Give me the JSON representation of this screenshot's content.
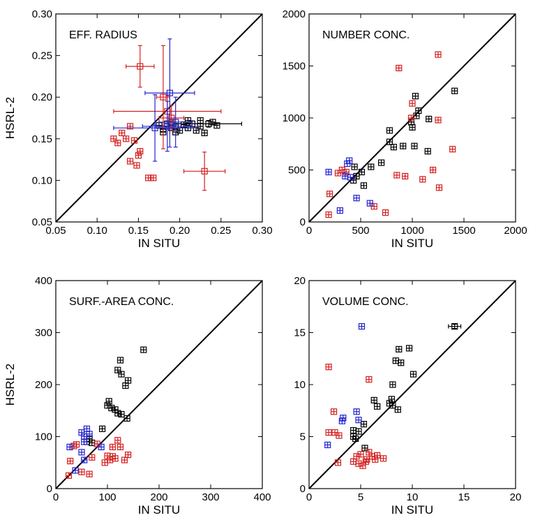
{
  "chart_data": [
    {
      "type": "scatter",
      "title": "EFF. RADIUS",
      "xlabel": "IN SITU",
      "ylabel": "HSRL-2",
      "xlim": [
        0.05,
        0.3
      ],
      "ylim": [
        0.05,
        0.3
      ],
      "xticks": [
        "0.05",
        "0.10",
        "0.15",
        "0.20",
        "0.25",
        "0.30"
      ],
      "yticks": [
        "0.05",
        "0.10",
        "0.15",
        "0.20",
        "0.25",
        "0.30"
      ],
      "one_to_one_line": true,
      "series": [
        {
          "color": "#000000",
          "points": [
            {
              "x": 0.235,
              "y": 0.168,
              "xerr": 0.04,
              "yerr": 0.004
            },
            {
              "x": 0.24,
              "y": 0.17
            },
            {
              "x": 0.245,
              "y": 0.166
            },
            {
              "x": 0.23,
              "y": 0.157
            },
            {
              "x": 0.225,
              "y": 0.165
            },
            {
              "x": 0.22,
              "y": 0.16
            },
            {
              "x": 0.215,
              "y": 0.168
            },
            {
              "x": 0.21,
              "y": 0.163
            },
            {
              "x": 0.205,
              "y": 0.167
            },
            {
              "x": 0.2,
              "y": 0.16
            },
            {
              "x": 0.195,
              "y": 0.165
            },
            {
              "x": 0.19,
              "y": 0.163
            },
            {
              "x": 0.185,
              "y": 0.168
            },
            {
              "x": 0.18,
              "y": 0.162
            },
            {
              "x": 0.175,
              "y": 0.166
            },
            {
              "x": 0.19,
              "y": 0.17
            },
            {
              "x": 0.21,
              "y": 0.172
            },
            {
              "x": 0.225,
              "y": 0.172
            },
            {
              "x": 0.18,
              "y": 0.158
            },
            {
              "x": 0.195,
              "y": 0.158
            }
          ]
        },
        {
          "color": "#d42020",
          "points": [
            {
              "x": 0.152,
              "y": 0.237,
              "xerr": 0.017,
              "yerr": 0.025
            },
            {
              "x": 0.18,
              "y": 0.2,
              "xerr": 0.008,
              "yerr": 0.062
            },
            {
              "x": 0.23,
              "y": 0.111,
              "xerr": 0.025,
              "yerr": 0.023
            },
            {
              "x": 0.185,
              "y": 0.183,
              "xerr": 0.065,
              "yerr": 0.02
            },
            {
              "x": 0.19,
              "y": 0.175,
              "xerr": 0.015,
              "yerr": 0.015
            },
            {
              "x": 0.14,
              "y": 0.165
            },
            {
              "x": 0.13,
              "y": 0.157
            },
            {
              "x": 0.135,
              "y": 0.15
            },
            {
              "x": 0.12,
              "y": 0.15
            },
            {
              "x": 0.125,
              "y": 0.145
            },
            {
              "x": 0.145,
              "y": 0.148
            },
            {
              "x": 0.152,
              "y": 0.135
            },
            {
              "x": 0.15,
              "y": 0.13
            },
            {
              "x": 0.14,
              "y": 0.123
            },
            {
              "x": 0.148,
              "y": 0.118
            },
            {
              "x": 0.162,
              "y": 0.103
            },
            {
              "x": 0.168,
              "y": 0.103
            }
          ]
        },
        {
          "color": "#2424d0",
          "points": [
            {
              "x": 0.188,
              "y": 0.205,
              "xerr": 0.03,
              "yerr": 0.065
            },
            {
              "x": 0.17,
              "y": 0.163,
              "xerr": 0.05,
              "yerr": 0.04
            },
            {
              "x": 0.185,
              "y": 0.165,
              "xerr": 0.03,
              "yerr": 0.03
            },
            {
              "x": 0.195,
              "y": 0.17,
              "xerr": 0.02,
              "yerr": 0.03
            }
          ]
        }
      ]
    },
    {
      "type": "scatter",
      "title": "NUMBER CONC.",
      "xlabel": "IN SITU",
      "ylabel": "",
      "xlim": [
        0,
        2000
      ],
      "ylim": [
        0,
        2000
      ],
      "xticks": [
        "0",
        "500",
        "1000",
        "1500",
        "2000"
      ],
      "yticks": [
        "0",
        "500",
        "1000",
        "1500",
        "2000"
      ],
      "one_to_one_line": true,
      "series": [
        {
          "color": "#000000",
          "points": [
            {
              "x": 1030,
              "y": 1210
            },
            {
              "x": 1410,
              "y": 1260
            },
            {
              "x": 1060,
              "y": 1070
            },
            {
              "x": 1040,
              "y": 1020
            },
            {
              "x": 990,
              "y": 960
            },
            {
              "x": 1000,
              "y": 910
            },
            {
              "x": 1160,
              "y": 990
            },
            {
              "x": 780,
              "y": 880
            },
            {
              "x": 780,
              "y": 770
            },
            {
              "x": 820,
              "y": 720
            },
            {
              "x": 910,
              "y": 730
            },
            {
              "x": 1020,
              "y": 730
            },
            {
              "x": 1150,
              "y": 680
            },
            {
              "x": 700,
              "y": 570
            },
            {
              "x": 600,
              "y": 530
            },
            {
              "x": 440,
              "y": 530
            },
            {
              "x": 510,
              "y": 480
            },
            {
              "x": 460,
              "y": 440
            },
            {
              "x": 430,
              "y": 400
            },
            {
              "x": 530,
              "y": 350
            }
          ]
        },
        {
          "color": "#d42020",
          "points": [
            {
              "x": 1250,
              "y": 1610
            },
            {
              "x": 870,
              "y": 1480
            },
            {
              "x": 1000,
              "y": 1140
            },
            {
              "x": 990,
              "y": 1000
            },
            {
              "x": 1250,
              "y": 980
            },
            {
              "x": 1390,
              "y": 700
            },
            {
              "x": 1200,
              "y": 500
            },
            {
              "x": 850,
              "y": 450
            },
            {
              "x": 930,
              "y": 440
            },
            {
              "x": 1100,
              "y": 410
            },
            {
              "x": 1260,
              "y": 330
            },
            {
              "x": 320,
              "y": 500
            },
            {
              "x": 280,
              "y": 470
            },
            {
              "x": 200,
              "y": 270
            },
            {
              "x": 630,
              "y": 150
            },
            {
              "x": 740,
              "y": 90
            },
            {
              "x": 190,
              "y": 70
            },
            {
              "x": 360,
              "y": 480
            }
          ]
        },
        {
          "color": "#2424d0",
          "points": [
            {
              "x": 390,
              "y": 590
            },
            {
              "x": 370,
              "y": 560
            },
            {
              "x": 190,
              "y": 480
            },
            {
              "x": 350,
              "y": 440
            },
            {
              "x": 400,
              "y": 430
            },
            {
              "x": 460,
              "y": 230
            },
            {
              "x": 590,
              "y": 180
            },
            {
              "x": 300,
              "y": 110
            }
          ]
        }
      ]
    },
    {
      "type": "scatter",
      "title": "SURF.-AREA CONC.",
      "xlabel": "IN SITU",
      "ylabel": "HSRL-2",
      "xlim": [
        0,
        400
      ],
      "ylim": [
        0,
        400
      ],
      "xticks": [
        "0",
        "100",
        "200",
        "300",
        "400"
      ],
      "yticks": [
        "0",
        "100",
        "200",
        "300",
        "400"
      ],
      "one_to_one_line": true,
      "series": [
        {
          "color": "#000000",
          "points": [
            {
              "x": 170,
              "y": 267
            },
            {
              "x": 125,
              "y": 247
            },
            {
              "x": 120,
              "y": 228
            },
            {
              "x": 127,
              "y": 220
            },
            {
              "x": 140,
              "y": 208
            },
            {
              "x": 135,
              "y": 198
            },
            {
              "x": 103,
              "y": 168
            },
            {
              "x": 100,
              "y": 160
            },
            {
              "x": 108,
              "y": 155
            },
            {
              "x": 115,
              "y": 152
            },
            {
              "x": 120,
              "y": 145
            },
            {
              "x": 127,
              "y": 143
            },
            {
              "x": 138,
              "y": 135
            },
            {
              "x": 90,
              "y": 115
            },
            {
              "x": 65,
              "y": 96
            },
            {
              "x": 70,
              "y": 88
            },
            {
              "x": 60,
              "y": 90
            }
          ]
        },
        {
          "color": "#d42020",
          "points": [
            {
              "x": 120,
              "y": 93
            },
            {
              "x": 110,
              "y": 80
            },
            {
              "x": 125,
              "y": 80
            },
            {
              "x": 80,
              "y": 86
            },
            {
              "x": 40,
              "y": 85
            },
            {
              "x": 35,
              "y": 82
            },
            {
              "x": 70,
              "y": 60
            },
            {
              "x": 100,
              "y": 63
            },
            {
              "x": 110,
              "y": 62
            },
            {
              "x": 105,
              "y": 55
            },
            {
              "x": 115,
              "y": 58
            },
            {
              "x": 140,
              "y": 65
            },
            {
              "x": 133,
              "y": 55
            },
            {
              "x": 95,
              "y": 50
            },
            {
              "x": 28,
              "y": 53
            },
            {
              "x": 50,
              "y": 32
            },
            {
              "x": 65,
              "y": 28
            },
            {
              "x": 25,
              "y": 25
            }
          ]
        },
        {
          "color": "#2424d0",
          "points": [
            {
              "x": 60,
              "y": 115
            },
            {
              "x": 50,
              "y": 108
            },
            {
              "x": 55,
              "y": 100
            },
            {
              "x": 65,
              "y": 105
            },
            {
              "x": 55,
              "y": 90
            },
            {
              "x": 27,
              "y": 80
            },
            {
              "x": 88,
              "y": 80
            },
            {
              "x": 50,
              "y": 70
            },
            {
              "x": 55,
              "y": 55
            },
            {
              "x": 38,
              "y": 35
            }
          ]
        }
      ]
    },
    {
      "type": "scatter",
      "title": "VOLUME CONC.",
      "xlabel": "IN SITU",
      "ylabel": "",
      "xlim": [
        0,
        20
      ],
      "ylim": [
        0,
        20
      ],
      "xticks": [
        "0",
        "5",
        "10",
        "15",
        "20"
      ],
      "yticks": [
        "0",
        "5",
        "10",
        "15",
        "20"
      ],
      "one_to_one_line": true,
      "series": [
        {
          "color": "#000000",
          "points": [
            {
              "x": 14.1,
              "y": 15.6,
              "xerr": 0.6,
              "yerr": 0.2
            },
            {
              "x": 8.7,
              "y": 13.4
            },
            {
              "x": 9.7,
              "y": 13.5
            },
            {
              "x": 8.4,
              "y": 12.3
            },
            {
              "x": 8.9,
              "y": 12.1
            },
            {
              "x": 10.1,
              "y": 11.0
            },
            {
              "x": 8.1,
              "y": 10.0
            },
            {
              "x": 6.3,
              "y": 8.5
            },
            {
              "x": 6.6,
              "y": 7.9
            },
            {
              "x": 8.0,
              "y": 8.6
            },
            {
              "x": 7.8,
              "y": 8.2
            },
            {
              "x": 8.1,
              "y": 8.0
            },
            {
              "x": 8.6,
              "y": 7.6
            },
            {
              "x": 5.3,
              "y": 6.2
            },
            {
              "x": 4.3,
              "y": 5.6
            },
            {
              "x": 4.8,
              "y": 5.5
            },
            {
              "x": 4.3,
              "y": 5.0
            },
            {
              "x": 4.5,
              "y": 4.8
            },
            {
              "x": 5.4,
              "y": 3.9
            }
          ]
        },
        {
          "color": "#d42020",
          "points": [
            {
              "x": 1.9,
              "y": 11.7
            },
            {
              "x": 5.8,
              "y": 10.5
            },
            {
              "x": 2.4,
              "y": 7.4
            },
            {
              "x": 1.9,
              "y": 5.4
            },
            {
              "x": 2.5,
              "y": 5.4
            },
            {
              "x": 2.9,
              "y": 5.1
            },
            {
              "x": 2.8,
              "y": 2.5
            },
            {
              "x": 4.3,
              "y": 2.6
            },
            {
              "x": 4.6,
              "y": 3.1
            },
            {
              "x": 4.8,
              "y": 2.4
            },
            {
              "x": 5.0,
              "y": 3.3
            },
            {
              "x": 5.2,
              "y": 2.2
            },
            {
              "x": 5.6,
              "y": 2.8
            },
            {
              "x": 5.8,
              "y": 3.5
            },
            {
              "x": 6.1,
              "y": 3.1
            },
            {
              "x": 6.4,
              "y": 2.8
            },
            {
              "x": 6.6,
              "y": 3.2
            },
            {
              "x": 7.2,
              "y": 2.9
            },
            {
              "x": 5.5,
              "y": 2.6
            }
          ]
        },
        {
          "color": "#2424d0",
          "points": [
            {
              "x": 5.1,
              "y": 15.6
            },
            {
              "x": 4.6,
              "y": 7.4
            },
            {
              "x": 3.3,
              "y": 6.8
            },
            {
              "x": 3.2,
              "y": 6.5
            },
            {
              "x": 4.8,
              "y": 6.6
            },
            {
              "x": 1.8,
              "y": 4.2
            }
          ]
        }
      ]
    }
  ]
}
